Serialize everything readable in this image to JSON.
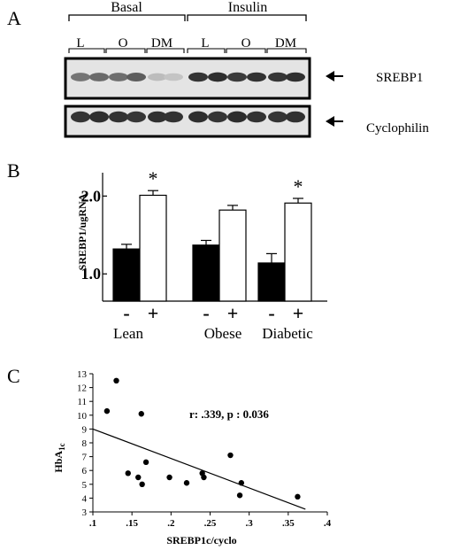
{
  "panel_labels": {
    "a": "A",
    "b": "B",
    "c": "C"
  },
  "blot": {
    "groups": [
      {
        "label": "Basal",
        "subgroups": [
          "L",
          "O",
          "DM"
        ]
      },
      {
        "label": "Insulin",
        "subgroups": [
          "L",
          "O",
          "DM"
        ]
      }
    ],
    "rows": [
      {
        "label": "SREBP1",
        "band_intensity": [
          0.55,
          0.6,
          0.58,
          0.66,
          0.22,
          0.18,
          0.85,
          0.88,
          0.82,
          0.86,
          0.84,
          0.87
        ]
      },
      {
        "label": "Cyclophilin",
        "band_intensity": [
          0.85,
          0.88,
          0.86,
          0.84,
          0.87,
          0.86,
          0.88,
          0.85,
          0.89,
          0.86,
          0.85,
          0.87
        ]
      }
    ]
  },
  "chart_data": [
    {
      "type": "bar",
      "ylabel": "SREBP1/ugRNA",
      "ylim": [
        0.65,
        2.3
      ],
      "yticks": [
        {
          "value": 1.0,
          "label": "1.0"
        },
        {
          "value": 2.0,
          "label": "2.0"
        }
      ],
      "categories": [
        "Lean",
        "Obese",
        "Diabetic"
      ],
      "condition_labels": [
        "-",
        "+"
      ],
      "series": [
        {
          "values": [
            1.32,
            1.37,
            1.14
          ],
          "errors": [
            0.06,
            0.06,
            0.12
          ],
          "color": "#000000"
        },
        {
          "values": [
            2.01,
            1.82,
            1.91
          ],
          "errors": [
            0.06,
            0.06,
            0.06
          ],
          "color": "#ffffff"
        }
      ],
      "significance": [
        {
          "category": "Lean",
          "marker": "*"
        },
        {
          "category": "Diabetic",
          "marker": "*"
        }
      ]
    },
    {
      "type": "scatter",
      "xlabel": "SREBP1c/cyclo",
      "ylabel": "HbA1c",
      "xlim": [
        0.1,
        0.4
      ],
      "ylim": [
        3,
        13
      ],
      "xticks": [
        {
          "value": 0.1,
          "label": ".1"
        },
        {
          "value": 0.15,
          "label": ".15"
        },
        {
          "value": 0.2,
          "label": ".2"
        },
        {
          "value": 0.25,
          "label": ".25"
        },
        {
          "value": 0.3,
          "label": ".3"
        },
        {
          "value": 0.35,
          "label": ".35"
        },
        {
          "value": 0.4,
          "label": ".4"
        }
      ],
      "yticks": [
        3,
        4,
        5,
        6,
        7,
        8,
        9,
        10,
        11,
        12,
        13
      ],
      "points": [
        {
          "x": 0.118,
          "y": 10.3
        },
        {
          "x": 0.13,
          "y": 12.5
        },
        {
          "x": 0.145,
          "y": 5.8
        },
        {
          "x": 0.158,
          "y": 5.5
        },
        {
          "x": 0.162,
          "y": 10.1
        },
        {
          "x": 0.163,
          "y": 5.0
        },
        {
          "x": 0.168,
          "y": 6.6
        },
        {
          "x": 0.198,
          "y": 5.5
        },
        {
          "x": 0.22,
          "y": 5.1
        },
        {
          "x": 0.24,
          "y": 5.8
        },
        {
          "x": 0.242,
          "y": 5.5
        },
        {
          "x": 0.276,
          "y": 7.1
        },
        {
          "x": 0.288,
          "y": 4.2
        },
        {
          "x": 0.29,
          "y": 5.1
        },
        {
          "x": 0.362,
          "y": 4.1
        }
      ],
      "fit_line": {
        "x1": 0.1,
        "y1": 9.0,
        "x2": 0.372,
        "y2": 3.2
      },
      "annotation": "r: .339, p : 0.036"
    }
  ]
}
